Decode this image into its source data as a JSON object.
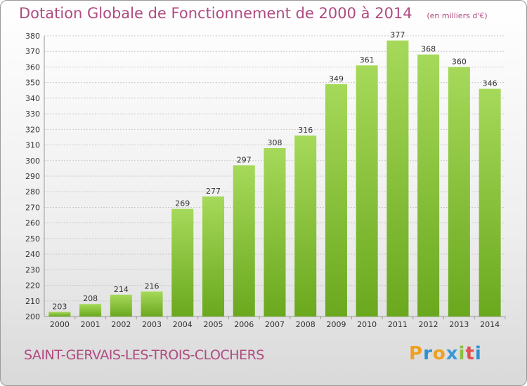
{
  "header": {
    "title": "Dotation Globale de Fonctionnement de 2000 à 2014",
    "subtitle": "(en milliers d'€)"
  },
  "footer": {
    "commune": "SAINT-GERVAIS-LES-TROIS-CLOCHERS",
    "logo": "Proxiti"
  },
  "colors": {
    "bar_light": "#a6d95a",
    "bar_dark": "#6aa81e",
    "title": "#b04a80",
    "grid": "#c8c8c8"
  },
  "chart_data": {
    "type": "bar",
    "title": "Dotation Globale de Fonctionnement de 2000 à 2014",
    "subtitle": "(en milliers d'€)",
    "xlabel": "",
    "ylabel": "",
    "categories": [
      "2000",
      "2001",
      "2002",
      "2003",
      "2004",
      "2005",
      "2006",
      "2007",
      "2008",
      "2009",
      "2010",
      "2011",
      "2012",
      "2013",
      "2014"
    ],
    "values": [
      203,
      208,
      214,
      216,
      269,
      277,
      297,
      308,
      316,
      349,
      361,
      377,
      368,
      360,
      346
    ],
    "ylim": [
      200,
      380
    ],
    "yticks": [
      200,
      210,
      220,
      230,
      240,
      250,
      260,
      270,
      280,
      290,
      300,
      310,
      320,
      330,
      340,
      350,
      360,
      370,
      380
    ],
    "grid": true,
    "legend": "none"
  }
}
